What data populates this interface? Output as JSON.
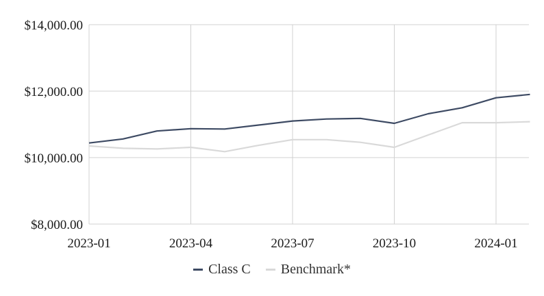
{
  "chart_data": {
    "type": "line",
    "title": "",
    "xlabel": "",
    "ylabel": "",
    "x": [
      "2023-01",
      "2023-02",
      "2023-03",
      "2023-04",
      "2023-05",
      "2023-06",
      "2023-07",
      "2023-08",
      "2023-09",
      "2023-10",
      "2023-11",
      "2023-12",
      "2024-01",
      "2024-02"
    ],
    "x_tick_labels": [
      "2023-01",
      "2023-04",
      "2023-07",
      "2023-10",
      "2024-01"
    ],
    "y_tick_labels": [
      "$8,000.00",
      "$10,000.00",
      "$12,000.00",
      "$14,000.00"
    ],
    "y_ticks": [
      8000,
      10000,
      12000,
      14000
    ],
    "ylim": [
      8000,
      14000
    ],
    "grid": true,
    "legend_position": "bottom",
    "series": [
      {
        "name": "Class C",
        "color": "#3d4a63",
        "values": [
          10440,
          10560,
          10800,
          10870,
          10860,
          10980,
          11100,
          11160,
          11180,
          11030,
          11320,
          11500,
          11800,
          11900
        ]
      },
      {
        "name": "Benchmark*",
        "color": "#d9d9d9",
        "values": [
          10350,
          10280,
          10260,
          10310,
          10180,
          10370,
          10540,
          10540,
          10460,
          10310,
          10680,
          11050,
          11050,
          11080
        ]
      }
    ]
  }
}
